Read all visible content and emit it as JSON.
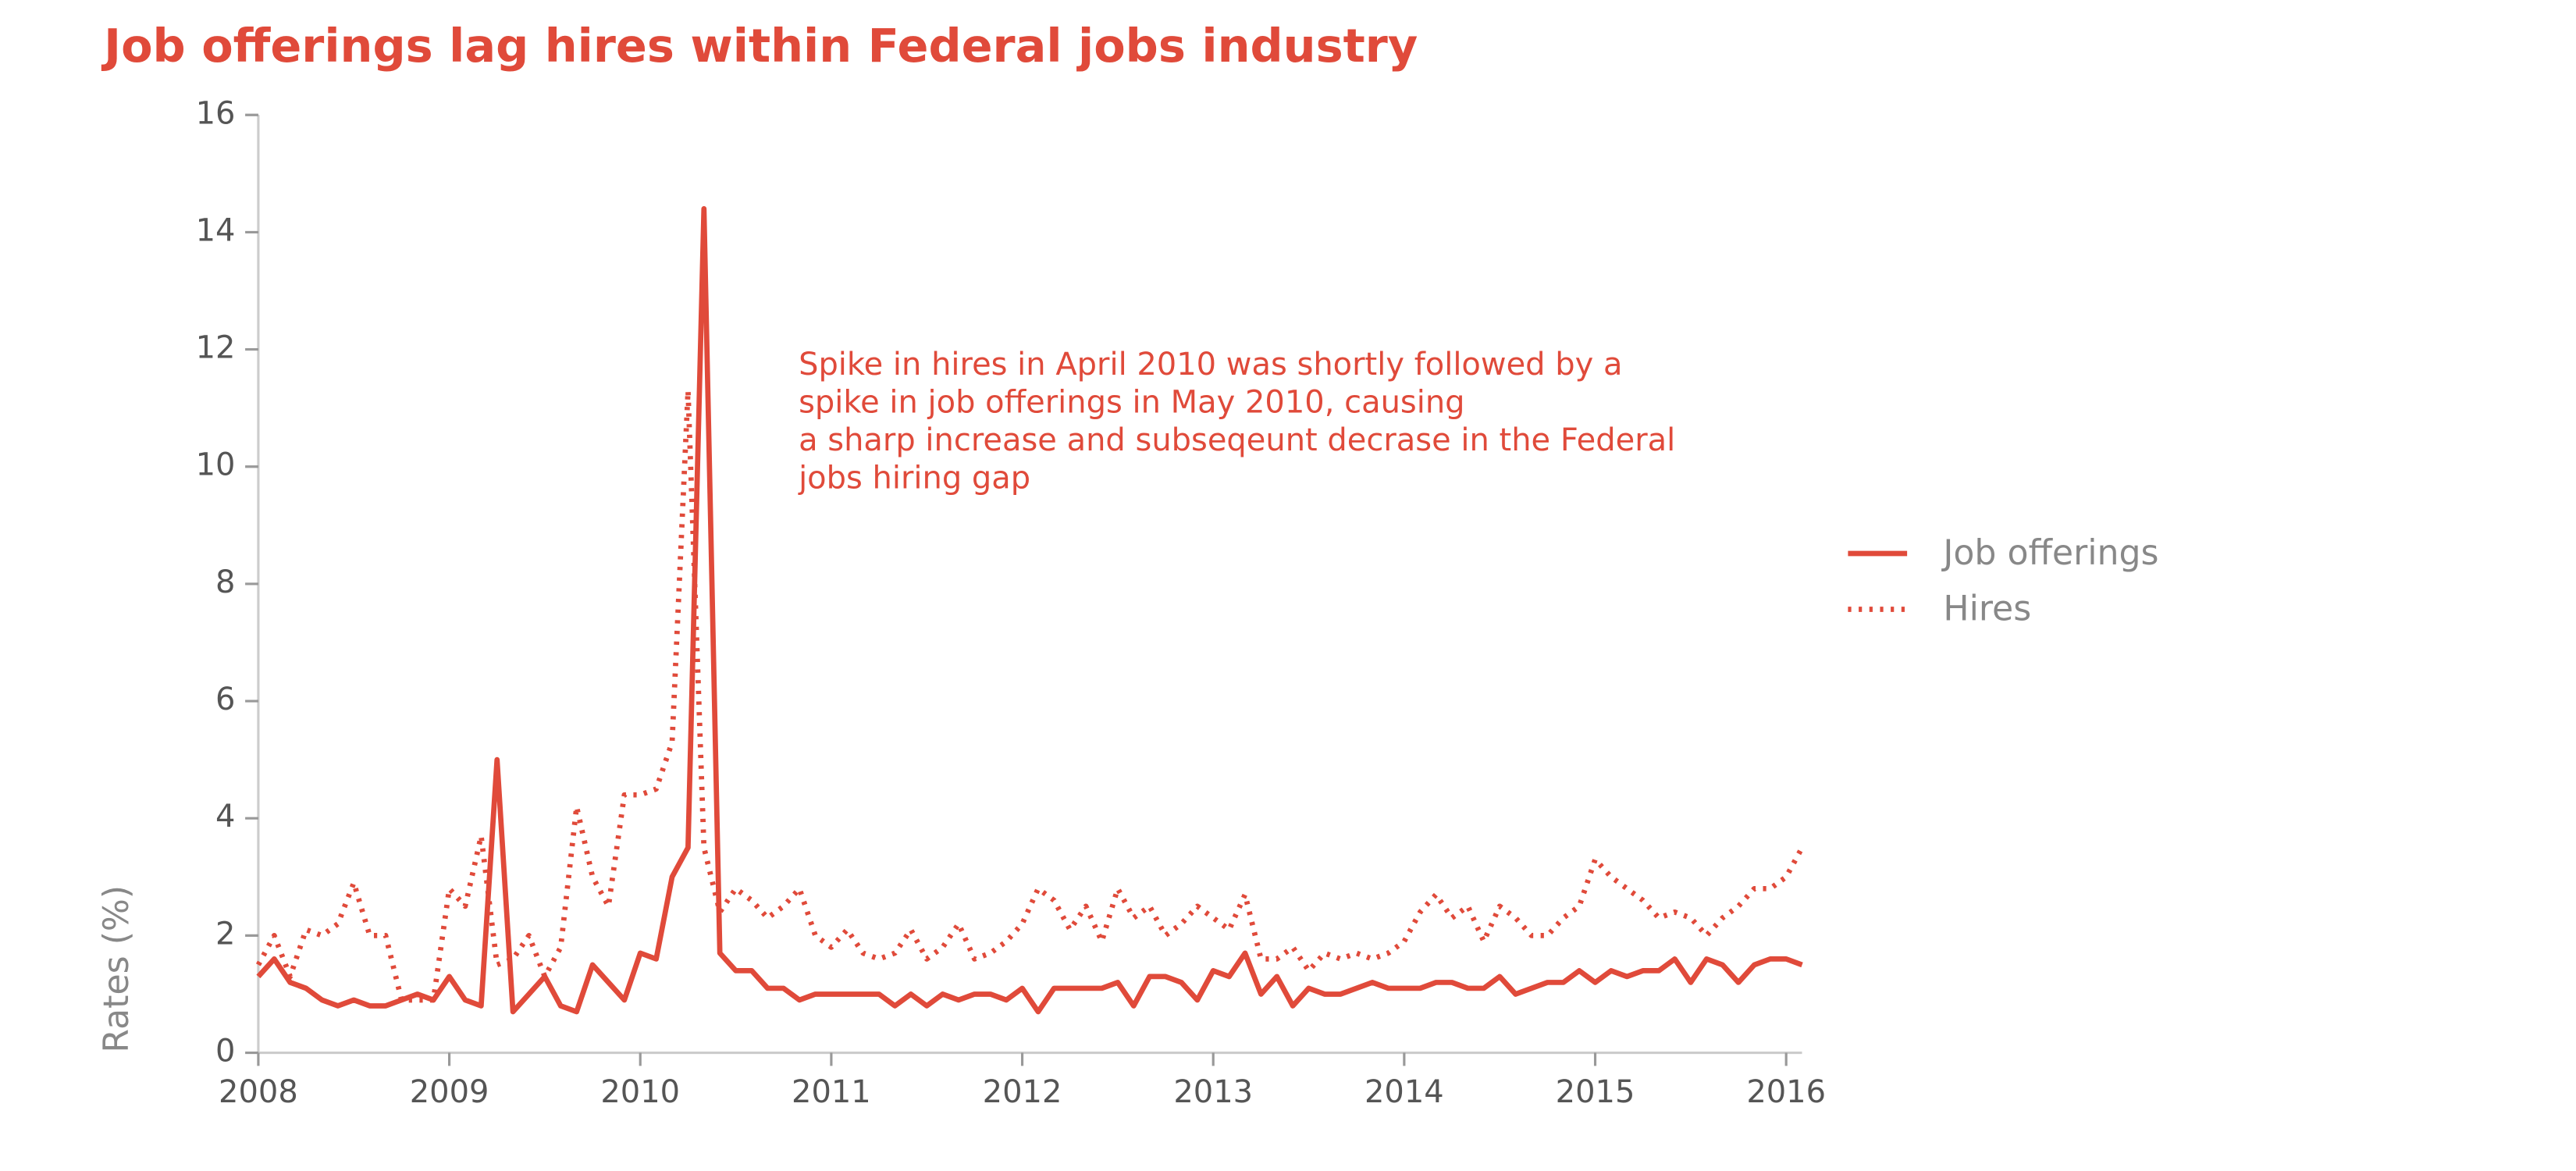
{
  "chart_data": {
    "type": "line",
    "title": "Job offerings lag hires within Federal jobs industry",
    "ylabel": "Rates (%)",
    "annotation": [
      "Spike in hires in April 2010 was shortly followed by a",
      "spike in job offerings in May 2010, causing",
      "a sharp increase and subseqeunt decrase in the Federal",
      "jobs hiring gap"
    ],
    "x": [
      "2008-01",
      "2008-02",
      "2008-03",
      "2008-04",
      "2008-05",
      "2008-06",
      "2008-07",
      "2008-08",
      "2008-09",
      "2008-10",
      "2008-11",
      "2008-12",
      "2009-01",
      "2009-02",
      "2009-03",
      "2009-04",
      "2009-05",
      "2009-06",
      "2009-07",
      "2009-08",
      "2009-09",
      "2009-10",
      "2009-11",
      "2009-12",
      "2010-01",
      "2010-02",
      "2010-03",
      "2010-04",
      "2010-05",
      "2010-06",
      "2010-07",
      "2010-08",
      "2010-09",
      "2010-10",
      "2010-11",
      "2010-12",
      "2011-01",
      "2011-02",
      "2011-03",
      "2011-04",
      "2011-05",
      "2011-06",
      "2011-07",
      "2011-08",
      "2011-09",
      "2011-10",
      "2011-11",
      "2011-12",
      "2012-01",
      "2012-02",
      "2012-03",
      "2012-04",
      "2012-05",
      "2012-06",
      "2012-07",
      "2012-08",
      "2012-09",
      "2012-10",
      "2012-11",
      "2012-12",
      "2013-01",
      "2013-02",
      "2013-03",
      "2013-04",
      "2013-05",
      "2013-06",
      "2013-07",
      "2013-08",
      "2013-09",
      "2013-10",
      "2013-11",
      "2013-12",
      "2014-01",
      "2014-02",
      "2014-03",
      "2014-04",
      "2014-05",
      "2014-06",
      "2014-07",
      "2014-08",
      "2014-09",
      "2014-10",
      "2014-11",
      "2014-12",
      "2015-01",
      "2015-02",
      "2015-03",
      "2015-04",
      "2015-05",
      "2015-06",
      "2015-07",
      "2015-08",
      "2015-09",
      "2015-10",
      "2015-11",
      "2015-12",
      "2016-01",
      "2016-02"
    ],
    "series": [
      {
        "name": "Job offerings",
        "color": "#e04a3a",
        "style": "solid",
        "values": [
          1.3,
          1.6,
          1.2,
          1.1,
          0.9,
          0.8,
          0.9,
          0.8,
          0.8,
          0.9,
          1.0,
          0.9,
          1.3,
          0.9,
          0.8,
          5.0,
          0.7,
          1.0,
          1.3,
          0.8,
          0.7,
          1.5,
          1.2,
          0.9,
          1.7,
          1.6,
          3.0,
          3.5,
          14.4,
          1.7,
          1.4,
          1.4,
          1.1,
          1.1,
          0.9,
          1.0,
          1.0,
          1.0,
          1.0,
          1.0,
          0.8,
          1.0,
          0.8,
          1.0,
          0.9,
          1.0,
          1.0,
          0.9,
          1.1,
          0.7,
          1.1,
          1.1,
          1.1,
          1.1,
          1.2,
          0.8,
          1.3,
          1.3,
          1.2,
          0.9,
          1.4,
          1.3,
          1.7,
          1.0,
          1.3,
          0.8,
          1.1,
          1.0,
          1.0,
          1.1,
          1.2,
          1.1,
          1.1,
          1.1,
          1.2,
          1.2,
          1.1,
          1.1,
          1.3,
          1.0,
          1.1,
          1.2,
          1.2,
          1.4,
          1.2,
          1.4,
          1.3,
          1.4,
          1.4,
          1.6,
          1.2,
          1.6,
          1.5,
          1.2,
          1.5,
          1.6,
          1.6,
          1.5
        ]
      },
      {
        "name": "Hires",
        "color": "#e04a3a",
        "style": "dotted",
        "values": [
          1.5,
          2.0,
          1.3,
          2.1,
          2.0,
          2.2,
          2.9,
          2.0,
          2.0,
          0.9,
          0.9,
          0.9,
          2.8,
          2.5,
          3.7,
          1.5,
          1.6,
          2.0,
          1.3,
          1.8,
          4.2,
          3.0,
          2.5,
          4.4,
          4.4,
          4.5,
          5.3,
          11.3,
          3.5,
          2.4,
          2.8,
          2.6,
          2.3,
          2.5,
          2.8,
          2.0,
          1.8,
          2.1,
          1.7,
          1.6,
          1.7,
          2.1,
          1.6,
          1.8,
          2.2,
          1.6,
          1.7,
          1.9,
          2.2,
          2.8,
          2.6,
          2.1,
          2.5,
          1.9,
          2.8,
          2.3,
          2.5,
          2.0,
          2.2,
          2.5,
          2.3,
          2.1,
          2.7,
          1.6,
          1.6,
          1.8,
          1.4,
          1.7,
          1.6,
          1.7,
          1.6,
          1.7,
          1.9,
          2.4,
          2.7,
          2.3,
          2.5,
          1.9,
          2.5,
          2.3,
          2.0,
          2.0,
          2.3,
          2.5,
          3.3,
          3.0,
          2.8,
          2.6,
          2.3,
          2.4,
          2.3,
          2.0,
          2.3,
          2.5,
          2.8,
          2.8,
          3.0,
          3.5
        ]
      }
    ],
    "xlim": [
      2008,
      2016.083
    ],
    "xticks": [
      2008,
      2009,
      2010,
      2011,
      2012,
      2013,
      2014,
      2015,
      2016
    ],
    "ylim": [
      0,
      16
    ],
    "yticks": [
      0,
      2,
      4,
      6,
      8,
      10,
      12,
      14,
      16
    ],
    "grid": false,
    "legend": "right"
  }
}
